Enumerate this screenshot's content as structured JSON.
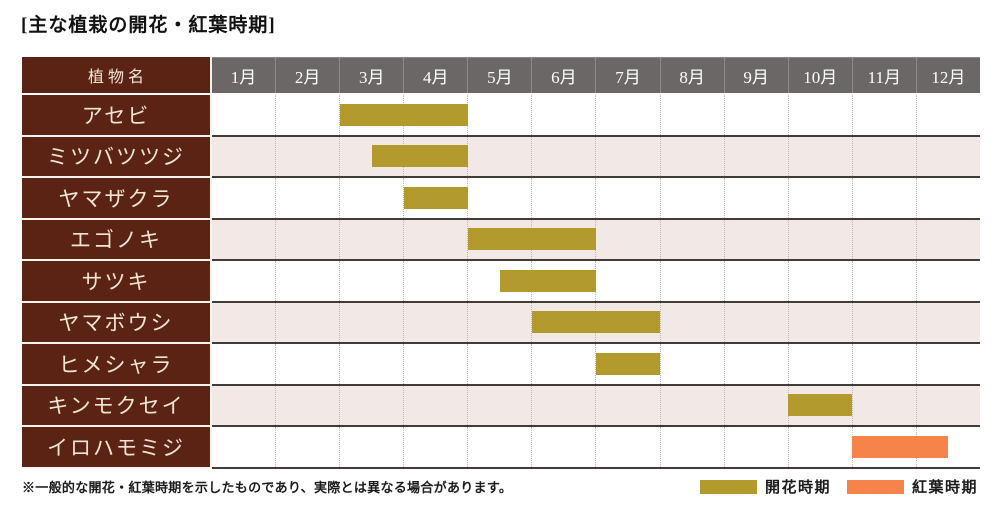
{
  "title": "[主な植栽の開花・紅葉時期]",
  "table": {
    "name_header": "植物名"
  },
  "chart_data": {
    "type": "bar",
    "variant": "gantt-timeline",
    "title": "主な植栽の開花・紅葉時期",
    "x_axis": {
      "unit": "month",
      "labels": [
        "1月",
        "2月",
        "3月",
        "4月",
        "5月",
        "6月",
        "7月",
        "8月",
        "9月",
        "10月",
        "11月",
        "12月"
      ],
      "range": [
        1,
        13
      ],
      "gridlines": "dotted-vertical"
    },
    "rows": [
      {
        "plant": "アセビ",
        "bar": {
          "start_month": 3.0,
          "end_month": 5.0,
          "kind": "bloom"
        }
      },
      {
        "plant": "ミツバツツジ",
        "bar": {
          "start_month": 3.5,
          "end_month": 5.0,
          "kind": "bloom"
        }
      },
      {
        "plant": "ヤマザクラ",
        "bar": {
          "start_month": 4.0,
          "end_month": 5.0,
          "kind": "bloom"
        }
      },
      {
        "plant": "エゴノキ",
        "bar": {
          "start_month": 5.0,
          "end_month": 7.0,
          "kind": "bloom"
        }
      },
      {
        "plant": "サツキ",
        "bar": {
          "start_month": 5.5,
          "end_month": 7.0,
          "kind": "bloom"
        }
      },
      {
        "plant": "ヤマボウシ",
        "bar": {
          "start_month": 6.0,
          "end_month": 8.0,
          "kind": "bloom"
        }
      },
      {
        "plant": "ヒメシャラ",
        "bar": {
          "start_month": 7.0,
          "end_month": 8.0,
          "kind": "bloom"
        }
      },
      {
        "plant": "キンモクセイ",
        "bar": {
          "start_month": 10.0,
          "end_month": 11.0,
          "kind": "bloom"
        }
      },
      {
        "plant": "イロハモミジ",
        "bar": {
          "start_month": 11.0,
          "end_month": 12.5,
          "kind": "foliage"
        }
      }
    ],
    "legend": [
      {
        "label": "開花時期",
        "kind": "bloom",
        "color": "#b29a2d"
      },
      {
        "label": "紅葉時期",
        "kind": "foliage",
        "color": "#f6834a"
      }
    ],
    "legend_position": "bottom-right"
  },
  "footnote": "※一般的な開花・紅葉時期を示したものであり、実際とは異なる場合があります。",
  "colors": {
    "page_bg": "#ffffff",
    "title_text": "#111111",
    "header_bg": "#6b6767",
    "header_text": "#ffffff",
    "name_col_bg": "#5b2314",
    "name_col_text": "#f4e4d2",
    "row_bg": "#ffffff",
    "row_alt_bg": "#f2e9e6",
    "row_divider": "#413c3a",
    "grid_dotted": "#bfbab7",
    "bloom": "#b29a2d",
    "foliage": "#f6834a"
  }
}
